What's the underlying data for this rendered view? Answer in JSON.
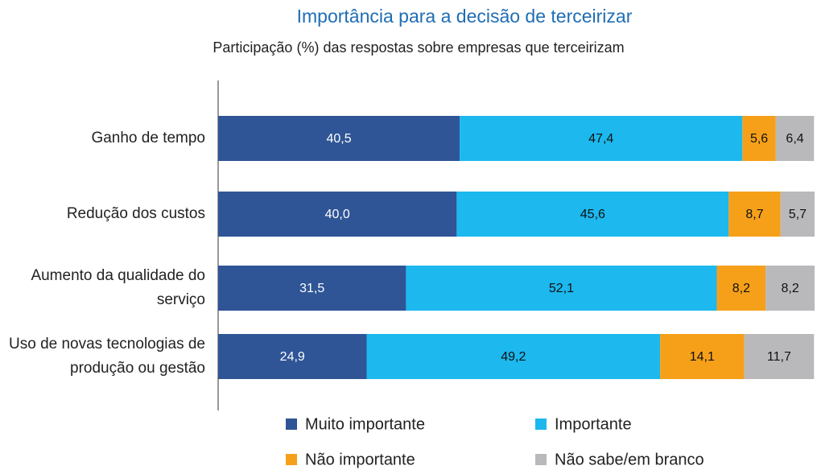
{
  "chart_data": {
    "type": "stacked-bar-horizontal",
    "title": "Importância para a decisão de terceirizar",
    "subtitle": "Participação (%) das respostas sobre empresas que terceirizam",
    "categories": [
      "Ganho de tempo",
      "Redução dos custos",
      "Aumento da qualidade do serviço",
      "Uso de novas tecnologias de produção ou gestão"
    ],
    "xlim": [
      0,
      100
    ],
    "series": [
      {
        "name": "Muito importante",
        "color": "#2f5596",
        "values": [
          40.5,
          40.0,
          31.5,
          24.9
        ],
        "value_labels": [
          "40,5",
          "40,0",
          "31,5",
          "24,9"
        ]
      },
      {
        "name": "Importante",
        "color": "#1cb8ee",
        "values": [
          47.4,
          45.6,
          52.1,
          49.2
        ],
        "value_labels": [
          "47,4",
          "45,6",
          "52,1",
          "49,2"
        ]
      },
      {
        "name": "Não importante",
        "color": "#f6a01a",
        "values": [
          5.6,
          8.7,
          8.2,
          14.1
        ],
        "value_labels": [
          "5,6",
          "8,7",
          "8,2",
          "14,1"
        ]
      },
      {
        "name": "Não sabe/em branco",
        "color": "#b9b9bb",
        "values": [
          6.4,
          5.7,
          8.2,
          11.7
        ],
        "value_labels": [
          "6,4",
          "5,7",
          "8,2",
          "11,7"
        ]
      }
    ]
  }
}
